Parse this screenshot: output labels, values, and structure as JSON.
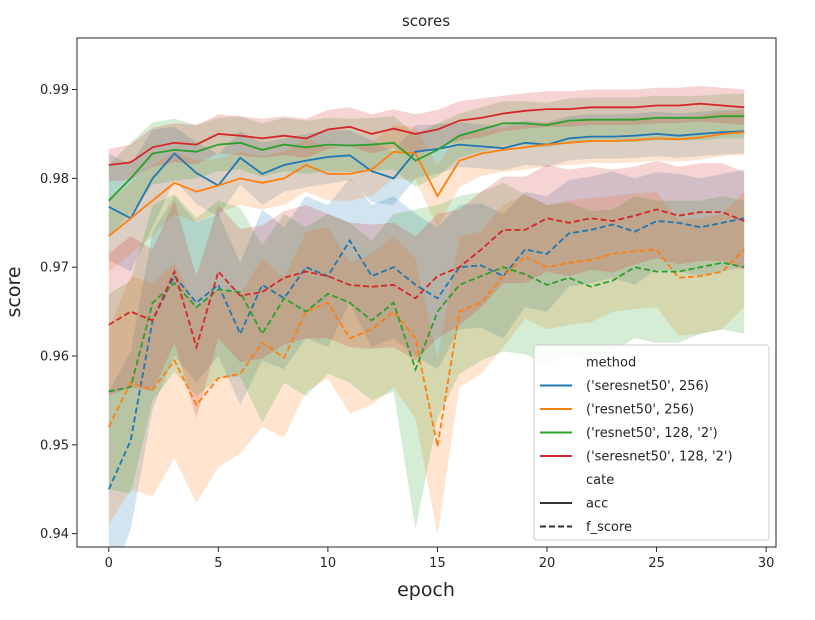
{
  "chart_data": {
    "type": "line",
    "title": "scores",
    "xlabel": "epoch",
    "ylabel": "score",
    "xlim": [
      -1.45,
      30.45
    ],
    "ylim": [
      0.9385,
      0.9958
    ],
    "xticks": [
      0,
      5,
      10,
      15,
      20,
      25,
      30
    ],
    "yticks": [
      0.94,
      0.95,
      0.96,
      0.97,
      0.98,
      0.99
    ],
    "ytick_labels": [
      "0.94",
      "0.95",
      "0.96",
      "0.97",
      "0.98",
      "0.99"
    ],
    "grid": false,
    "legend": {
      "placement": "lower-right",
      "hue_title": "method",
      "style_title": "cate",
      "style_entries": [
        {
          "label": "acc",
          "dash": "solid"
        },
        {
          "label": "f_score",
          "dash": "dashed"
        }
      ]
    },
    "x": [
      0,
      1,
      2,
      3,
      4,
      5,
      6,
      7,
      8,
      9,
      10,
      11,
      12,
      13,
      14,
      15,
      16,
      17,
      18,
      19,
      20,
      21,
      22,
      23,
      24,
      25,
      26,
      27,
      28,
      29
    ],
    "series": [
      {
        "name": "('seresnet50', 256)",
        "color": "#1f77b4",
        "acc": [
          0.9768,
          0.9755,
          0.98,
          0.9828,
          0.9806,
          0.9792,
          0.9823,
          0.9805,
          0.9815,
          0.982,
          0.9824,
          0.9826,
          0.9808,
          0.98,
          0.983,
          0.9833,
          0.9838,
          0.9836,
          0.9834,
          0.984,
          0.9838,
          0.9845,
          0.9847,
          0.9847,
          0.9848,
          0.985,
          0.9848,
          0.985,
          0.9852,
          0.9853
        ],
        "acc_band": [
          0.006,
          0.006,
          0.0055,
          0.003,
          0.0035,
          0.0035,
          0.003,
          0.0035,
          0.003,
          0.003,
          0.003,
          0.0028,
          0.0035,
          0.003,
          0.003,
          0.0028,
          0.0025,
          0.0025,
          0.0025,
          0.0025,
          0.0025,
          0.0025,
          0.0025,
          0.0025,
          0.0025,
          0.0025,
          0.0025,
          0.0025,
          0.0025,
          0.0025
        ],
        "f_score": [
          0.945,
          0.9505,
          0.964,
          0.969,
          0.966,
          0.968,
          0.9625,
          0.968,
          0.9665,
          0.97,
          0.969,
          0.973,
          0.969,
          0.97,
          0.968,
          0.9665,
          0.97,
          0.9702,
          0.969,
          0.972,
          0.9715,
          0.9738,
          0.9742,
          0.9748,
          0.974,
          0.9752,
          0.975,
          0.9745,
          0.975,
          0.9755
        ],
        "f_band": [
          0.011,
          0.01,
          0.01,
          0.009,
          0.009,
          0.008,
          0.008,
          0.0085,
          0.008,
          0.008,
          0.008,
          0.007,
          0.008,
          0.008,
          0.008,
          0.008,
          0.007,
          0.007,
          0.007,
          0.0065,
          0.0065,
          0.006,
          0.006,
          0.006,
          0.006,
          0.0055,
          0.0055,
          0.0055,
          0.0055,
          0.0055
        ]
      },
      {
        "name": "('resnet50', 256)",
        "color": "#ff7f0e",
        "acc": [
          0.9735,
          0.9755,
          0.9775,
          0.9795,
          0.9785,
          0.9792,
          0.98,
          0.9795,
          0.98,
          0.9815,
          0.9805,
          0.9805,
          0.981,
          0.983,
          0.9828,
          0.978,
          0.982,
          0.9828,
          0.9832,
          0.9835,
          0.9838,
          0.984,
          0.9842,
          0.9842,
          0.9843,
          0.9845,
          0.9844,
          0.9846,
          0.985,
          0.9852
        ],
        "acc_band": [
          0.004,
          0.004,
          0.004,
          0.0035,
          0.0035,
          0.003,
          0.003,
          0.003,
          0.003,
          0.003,
          0.003,
          0.003,
          0.003,
          0.003,
          0.003,
          0.0035,
          0.003,
          0.0025,
          0.0025,
          0.0025,
          0.0025,
          0.0025,
          0.0025,
          0.0025,
          0.0025,
          0.0025,
          0.0025,
          0.0025,
          0.0025,
          0.0025
        ],
        "f_score": [
          0.952,
          0.957,
          0.9562,
          0.9595,
          0.9545,
          0.9575,
          0.958,
          0.9615,
          0.9598,
          0.965,
          0.966,
          0.962,
          0.963,
          0.965,
          0.962,
          0.9498,
          0.965,
          0.966,
          0.969,
          0.9712,
          0.97,
          0.9705,
          0.9708,
          0.9715,
          0.9718,
          0.972,
          0.9688,
          0.969,
          0.9695,
          0.972
        ],
        "f_band": [
          0.011,
          0.012,
          0.012,
          0.011,
          0.011,
          0.01,
          0.009,
          0.0095,
          0.009,
          0.009,
          0.0085,
          0.0085,
          0.0085,
          0.0085,
          0.009,
          0.01,
          0.0085,
          0.008,
          0.008,
          0.007,
          0.007,
          0.007,
          0.007,
          0.0065,
          0.0065,
          0.0065,
          0.0065,
          0.0065,
          0.0065,
          0.0065
        ]
      },
      {
        "name": "('resnet50', 128, '2')",
        "color": "#2ca02c",
        "acc": [
          0.9775,
          0.98,
          0.9828,
          0.9832,
          0.983,
          0.9838,
          0.984,
          0.9832,
          0.9838,
          0.9835,
          0.9838,
          0.9837,
          0.9838,
          0.984,
          0.982,
          0.9832,
          0.9848,
          0.9855,
          0.9862,
          0.9862,
          0.986,
          0.9865,
          0.9866,
          0.9866,
          0.9866,
          0.9868,
          0.9868,
          0.9868,
          0.987,
          0.987
        ],
        "acc_band": [
          0.004,
          0.004,
          0.0035,
          0.0035,
          0.003,
          0.003,
          0.003,
          0.003,
          0.003,
          0.003,
          0.003,
          0.003,
          0.003,
          0.003,
          0.003,
          0.003,
          0.0025,
          0.0025,
          0.0025,
          0.0025,
          0.0025,
          0.0025,
          0.0025,
          0.0025,
          0.0025,
          0.0025,
          0.0025,
          0.0025,
          0.0025,
          0.0025
        ],
        "f_score": [
          0.956,
          0.9565,
          0.966,
          0.9682,
          0.9655,
          0.9675,
          0.9672,
          0.9625,
          0.9665,
          0.965,
          0.967,
          0.966,
          0.964,
          0.966,
          0.9585,
          0.965,
          0.968,
          0.969,
          0.97,
          0.9692,
          0.968,
          0.9688,
          0.9678,
          0.9685,
          0.97,
          0.9695,
          0.9695,
          0.97,
          0.9705,
          0.97
        ],
        "f_band": [
          0.011,
          0.012,
          0.011,
          0.01,
          0.01,
          0.01,
          0.0095,
          0.01,
          0.0095,
          0.0095,
          0.009,
          0.009,
          0.009,
          0.01,
          0.018,
          0.012,
          0.01,
          0.0095,
          0.0095,
          0.009,
          0.009,
          0.0085,
          0.0085,
          0.008,
          0.008,
          0.008,
          0.008,
          0.0075,
          0.0075,
          0.0075
        ]
      },
      {
        "name": "('seresnet50', 128, '2')",
        "color": "#d62728",
        "acc": [
          0.9815,
          0.9818,
          0.9835,
          0.984,
          0.9838,
          0.985,
          0.9848,
          0.9845,
          0.9848,
          0.9845,
          0.9855,
          0.9858,
          0.985,
          0.9856,
          0.985,
          0.9855,
          0.9865,
          0.9868,
          0.9873,
          0.9876,
          0.9878,
          0.9878,
          0.988,
          0.988,
          0.988,
          0.9882,
          0.9882,
          0.9884,
          0.9882,
          0.988
        ],
        "acc_band": [
          0.0018,
          0.002,
          0.0022,
          0.0022,
          0.0022,
          0.0022,
          0.0022,
          0.0022,
          0.0022,
          0.0022,
          0.0022,
          0.0022,
          0.0022,
          0.0022,
          0.0022,
          0.0022,
          0.0022,
          0.0022,
          0.002,
          0.002,
          0.002,
          0.002,
          0.002,
          0.002,
          0.002,
          0.002,
          0.002,
          0.002,
          0.002,
          0.002
        ],
        "f_score": [
          0.9635,
          0.965,
          0.964,
          0.9695,
          0.961,
          0.9695,
          0.9668,
          0.9672,
          0.9688,
          0.9695,
          0.969,
          0.968,
          0.9678,
          0.968,
          0.9665,
          0.969,
          0.97,
          0.972,
          0.9742,
          0.9742,
          0.9755,
          0.975,
          0.9755,
          0.9752,
          0.9758,
          0.9765,
          0.9758,
          0.9762,
          0.9762,
          0.9752
        ],
        "f_band": [
          0.008,
          0.0085,
          0.008,
          0.008,
          0.008,
          0.0075,
          0.0075,
          0.0075,
          0.0075,
          0.0075,
          0.007,
          0.007,
          0.007,
          0.007,
          0.007,
          0.007,
          0.0065,
          0.0065,
          0.006,
          0.006,
          0.006,
          0.006,
          0.0058,
          0.0058,
          0.0055,
          0.0055,
          0.0055,
          0.0055,
          0.0055,
          0.0055
        ]
      }
    ]
  }
}
